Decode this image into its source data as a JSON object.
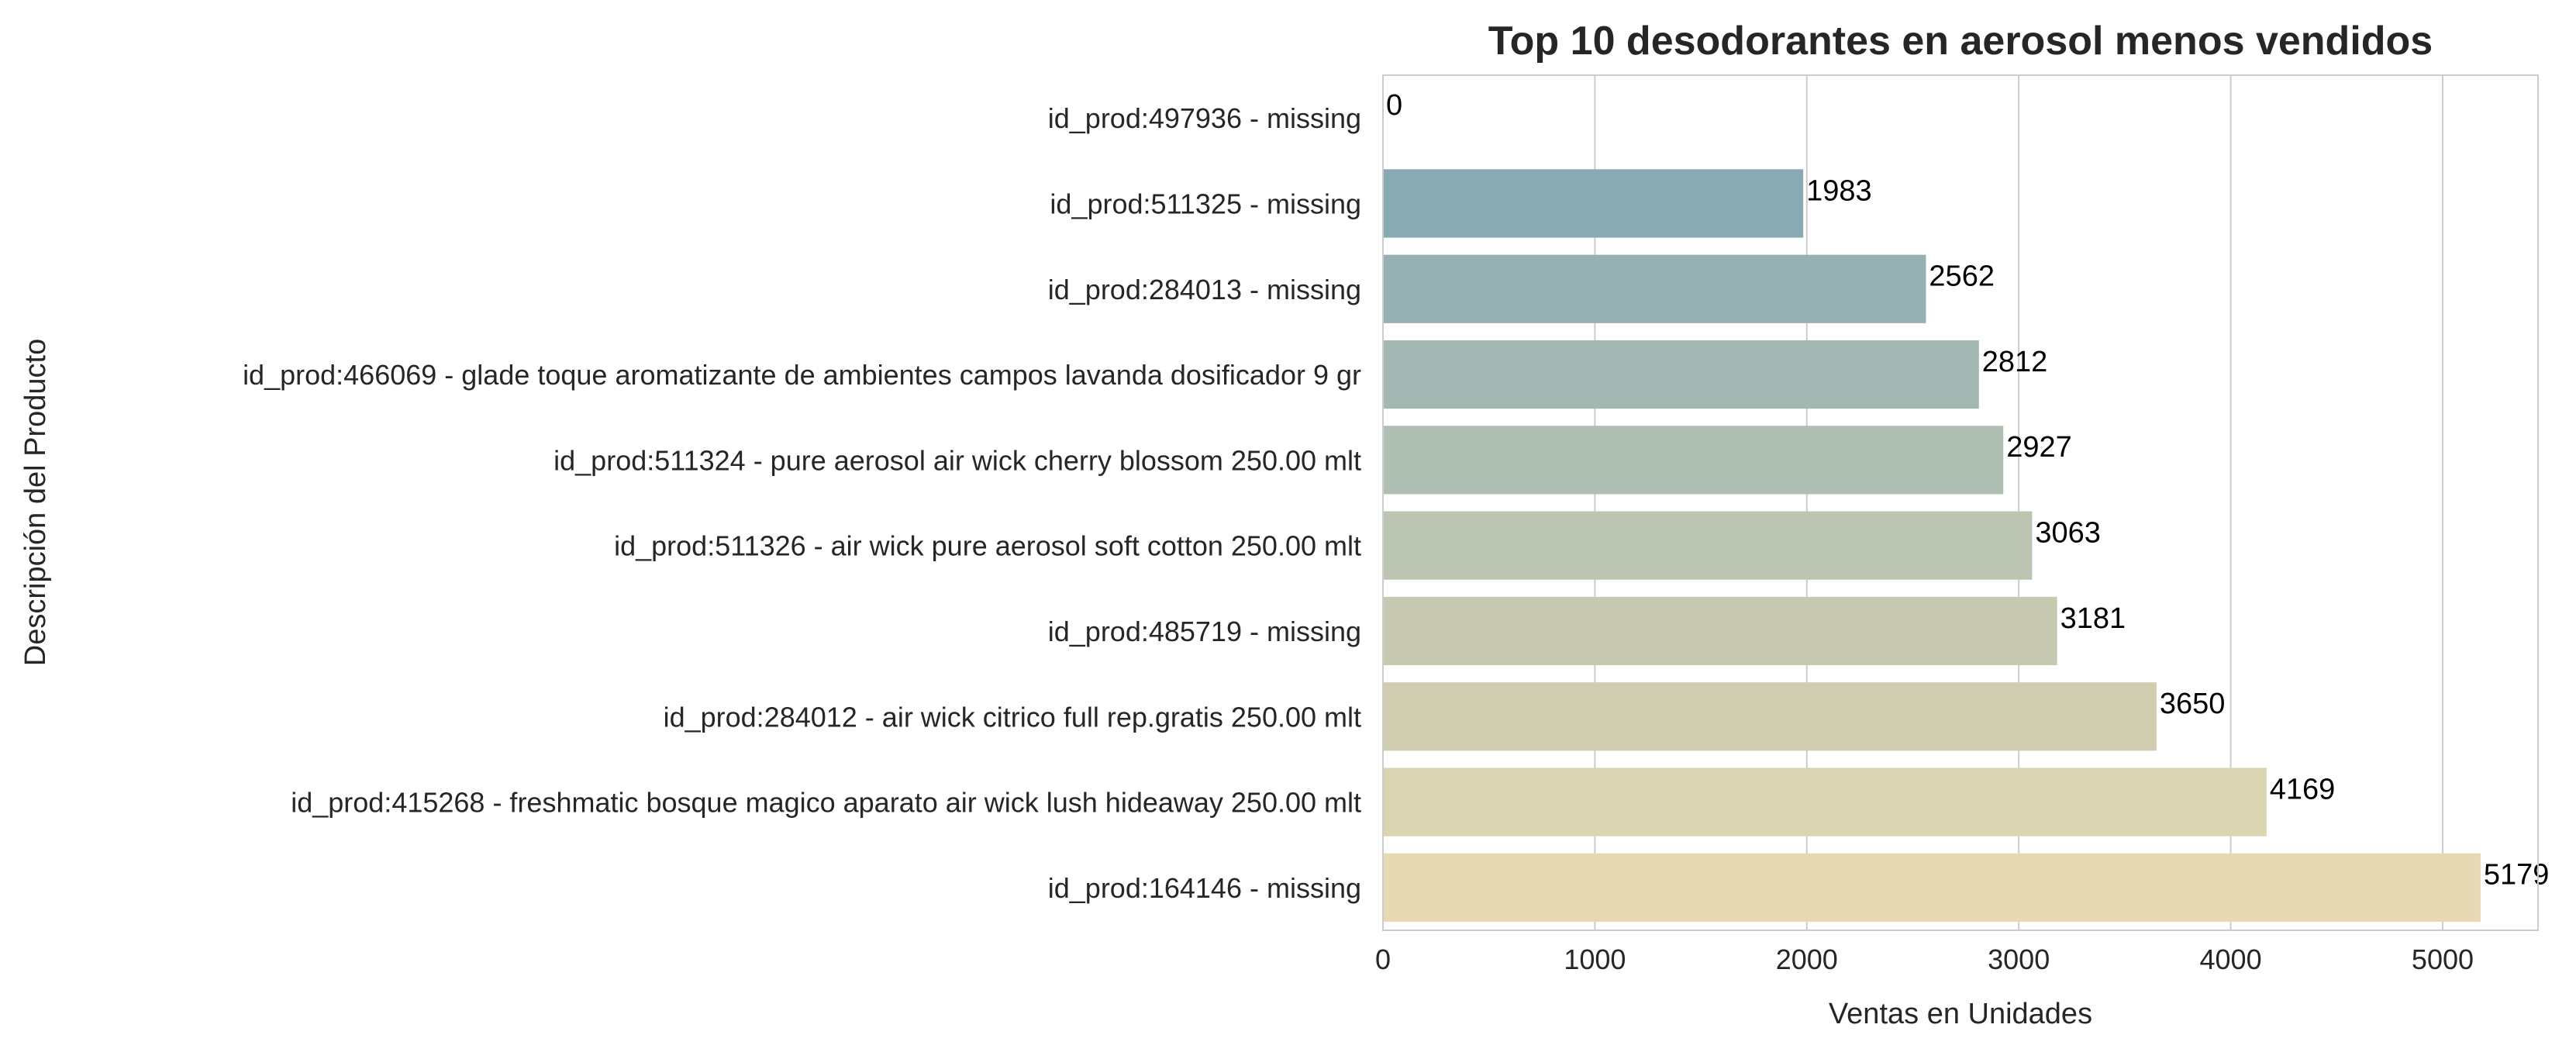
{
  "chart_data": {
    "type": "bar",
    "orientation": "horizontal",
    "title": "Top 10 desodorantes en aerosol menos vendidos",
    "xlabel": "Ventas en Unidades",
    "ylabel": "Descripción del Producto",
    "xlim": [
      0,
      5450
    ],
    "xticks": [
      0,
      1000,
      2000,
      3000,
      4000,
      5000
    ],
    "grid": "vertical",
    "categories": [
      "id_prod:497936 - missing",
      "id_prod:511325 - missing",
      "id_prod:284013 - missing",
      "id_prod:466069 - glade toque aromatizante de ambientes campos lavanda dosificador 9 gr",
      "id_prod:511324 - pure aerosol air wick cherry blossom 250.00 mlt",
      "id_prod:511326 - air wick pure aerosol soft cotton 250.00 mlt",
      "id_prod:485719 - missing",
      "id_prod:284012 - air wick citrico full rep.gratis 250.00 mlt",
      "id_prod:415268 - freshmatic bosque magico aparato air wick lush hideaway 250.00 mlt",
      "id_prod:164146 - missing"
    ],
    "values": [
      0,
      1983,
      2562,
      2812,
      2927,
      3063,
      3181,
      3650,
      4169,
      5179
    ],
    "colors": [
      "#7fa8b2",
      "#88abb3",
      "#96b1b4",
      "#a3b8b3",
      "#b0bfb3",
      "#bcc4b2",
      "#c7c9b1",
      "#d1cdb0",
      "#dbd4b2",
      "#e6d9b3"
    ]
  }
}
